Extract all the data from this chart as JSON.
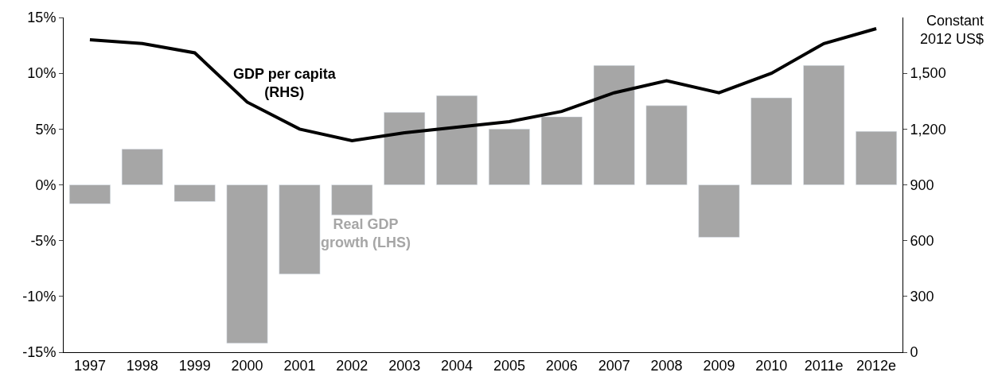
{
  "chart_data": {
    "type": "bar",
    "categories": [
      "1997",
      "1998",
      "1999",
      "2000",
      "2001",
      "2002",
      "2003",
      "2004",
      "2005",
      "2006",
      "2007",
      "2008",
      "2009",
      "2010",
      "2011e",
      "2012e"
    ],
    "series": [
      {
        "name": "Real GDP\ngrowth (LHS)",
        "color": "#a6a6a6",
        "values": [
          -1.7,
          3.2,
          -1.5,
          -14.2,
          -8.0,
          -2.7,
          6.5,
          8.0,
          5.0,
          6.1,
          10.7,
          7.1,
          -4.7,
          7.8,
          10.7,
          4.8
        ]
      },
      {
        "name": "GDP per capita\n(RHS)",
        "type": "line",
        "axis": "y2",
        "color": "#000000",
        "values": [
          1680,
          1660,
          1610,
          1345,
          1200,
          1137,
          1180,
          1210,
          1240,
          1295,
          1395,
          1460,
          1395,
          1500,
          1660,
          1740
        ]
      }
    ],
    "ylim": [
      -15,
      15
    ],
    "yticks": [
      {
        "value": -15,
        "label": "-15%"
      },
      {
        "value": -10,
        "label": "-10%"
      },
      {
        "value": -5,
        "label": "-5%"
      },
      {
        "value": 0,
        "label": "0%"
      },
      {
        "value": 5,
        "label": "5%"
      },
      {
        "value": 10,
        "label": "10%"
      },
      {
        "value": 15,
        "label": "15%"
      }
    ],
    "y2lim": [
      0,
      1800
    ],
    "y2ticks": [
      {
        "value": 0,
        "label": "0"
      },
      {
        "value": 300,
        "label": "300"
      },
      {
        "value": 600,
        "label": "600"
      },
      {
        "value": 900,
        "label": "900"
      },
      {
        "value": 1200,
        "label": "1,200"
      },
      {
        "value": 1500,
        "label": "1,500"
      }
    ],
    "y2label": "Constant\n2012 US$",
    "marker": "none"
  }
}
